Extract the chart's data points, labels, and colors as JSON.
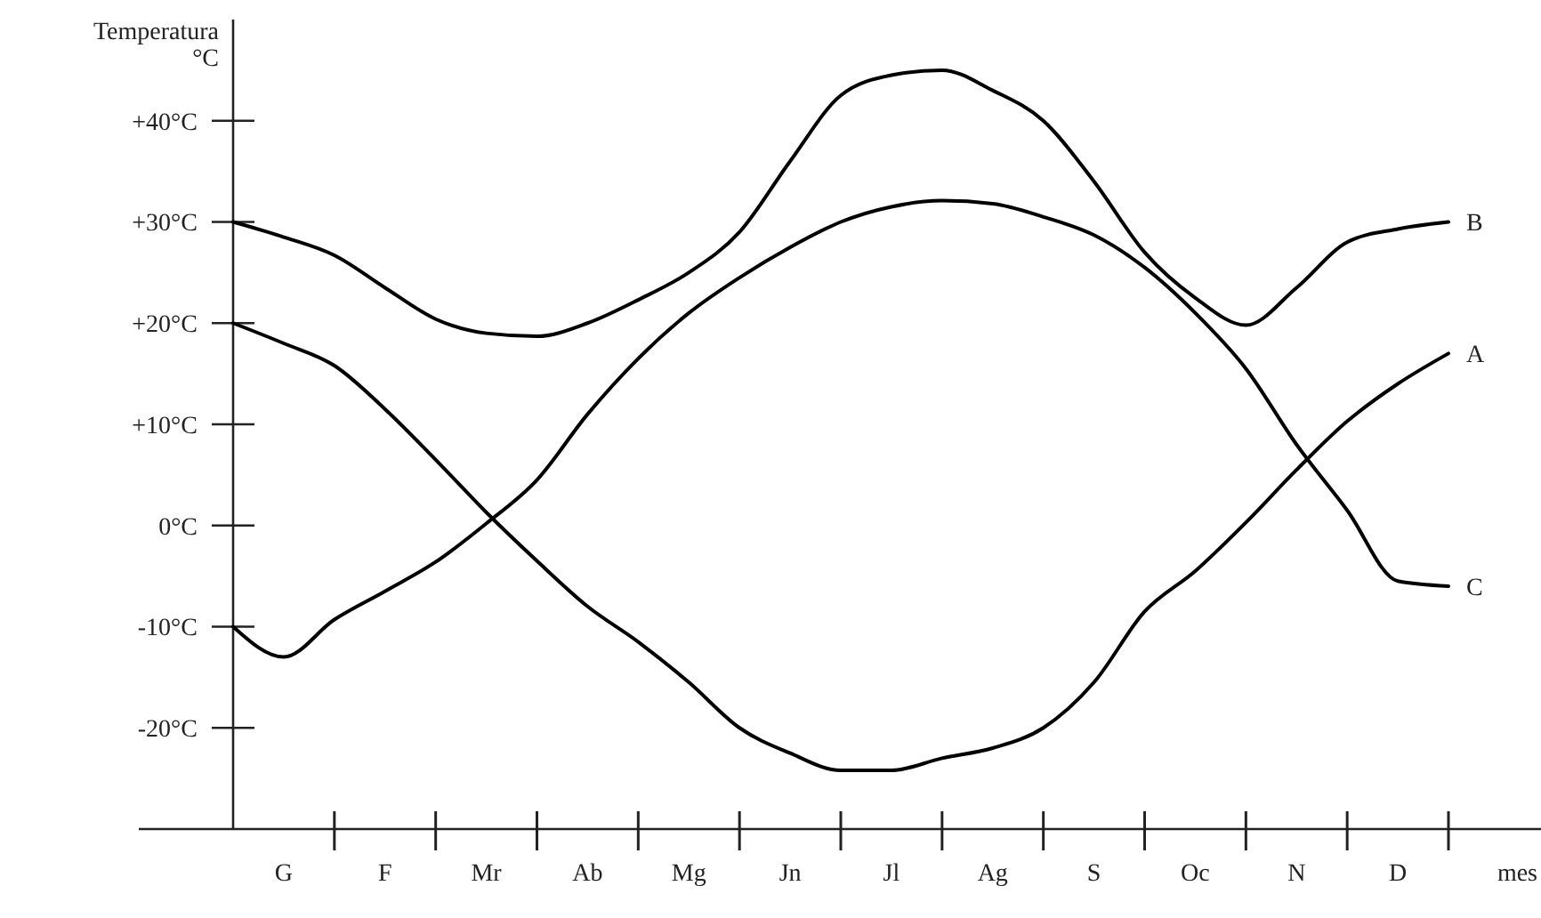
{
  "chart_data": {
    "type": "line",
    "ylabel": "Temperatura °C",
    "xlabel": "mes",
    "categories": [
      null,
      "G",
      null,
      "F",
      null,
      "Mr",
      null,
      "Ab",
      null,
      "Mg",
      null,
      "Jn",
      null,
      "Jl",
      null,
      "Ag",
      null,
      "S",
      null,
      "Oc",
      null,
      "N",
      null,
      "D",
      null
    ],
    "ylim": [
      -30,
      50
    ],
    "yticks": [
      {
        "value": -20,
        "label": "-20°C"
      },
      {
        "value": -10,
        "label": "-10°C"
      },
      {
        "value": 0,
        "label": "0°C"
      },
      {
        "value": 10,
        "label": "+10°C"
      },
      {
        "value": 20,
        "label": "+20°C"
      },
      {
        "value": 30,
        "label": "+30°C"
      },
      {
        "value": 40,
        "label": "+40°C"
      }
    ],
    "line_style": "solid",
    "series": [
      {
        "name": "B",
        "color": "#000000",
        "values": [
          30,
          28.5,
          26.7,
          23.5,
          20.4,
          19,
          18.7,
          20,
          22.3,
          25,
          29,
          36,
          42.5,
          44.5,
          45,
          43,
          40,
          34,
          27,
          22.5,
          19.8,
          23.5,
          28,
          29.3,
          30
        ]
      },
      {
        "name": "A",
        "color": "#000000",
        "values": [
          20,
          18,
          15.8,
          11.5,
          6.5,
          1.3,
          -3.5,
          -8,
          -11.5,
          -15.5,
          -20,
          -22.5,
          -24.2,
          -24.2,
          -23,
          -22,
          -20,
          -15.5,
          -8.5,
          -4.5,
          0.3,
          5.5,
          10.3,
          14,
          17
        ]
      },
      {
        "name": "C",
        "color": "#000000",
        "values": [
          -10,
          -13,
          -9.3,
          -6.5,
          -3.6,
          0.2,
          4.5,
          11,
          16.5,
          21,
          24.5,
          27.5,
          30,
          31.5,
          32.1,
          31.8,
          30.5,
          28.7,
          25.5,
          21,
          15.5,
          8,
          1.5,
          -5.5,
          -6
        ]
      }
    ]
  }
}
